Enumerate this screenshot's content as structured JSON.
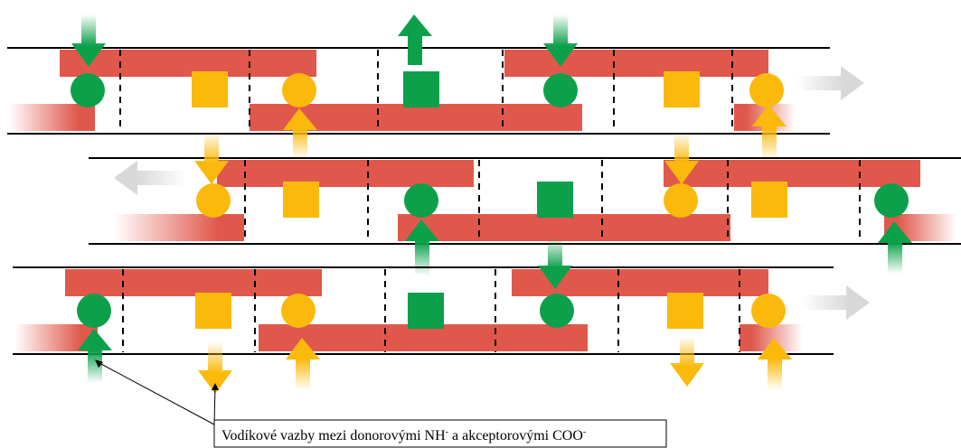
{
  "caption": {
    "text": "Vodíkové vazby mezi donorovými NH",
    "sup1": "-",
    "text2": " a akceptorovými COO",
    "sup2": "-"
  },
  "colors": {
    "bar": "#e0584c",
    "donor": "#0da04b",
    "acceptor": "#fbb90c",
    "line": "#000000",
    "divider": "#000000",
    "fade_arrow": "#e3e3e3"
  },
  "legend_semantics": {
    "shapes": [
      "circle",
      "square"
    ],
    "arrow_directions": [
      "up",
      "down",
      "left",
      "right"
    ]
  }
}
